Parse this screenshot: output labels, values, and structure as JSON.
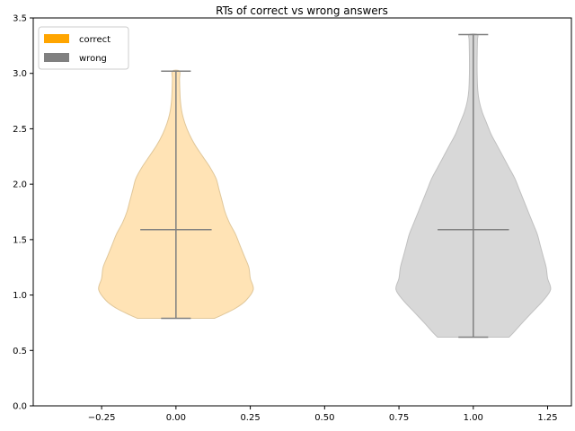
{
  "chart_data": {
    "type": "violin",
    "title": "RTs of correct vs wrong answers",
    "xlabel": "",
    "ylabel": "",
    "xlim": [
      -0.48,
      1.33
    ],
    "ylim": [
      0,
      3.5
    ],
    "xticks": [
      -0.25,
      0.0,
      0.25,
      0.5,
      0.75,
      1.0,
      1.25
    ],
    "xtick_labels": [
      "−0.25",
      "0.00",
      "0.25",
      "0.50",
      "0.75",
      "1.00",
      "1.25"
    ],
    "yticks": [
      0.0,
      0.5,
      1.0,
      1.5,
      2.0,
      2.5,
      3.0,
      3.5
    ],
    "ytick_labels": [
      "0.0",
      "0.5",
      "1.0",
      "1.5",
      "2.0",
      "2.5",
      "3.0",
      "3.5"
    ],
    "legend_position": "top-left",
    "grid": false,
    "series": [
      {
        "name": "correct",
        "legend_color": "#ffa500",
        "fill": "#ffe3b5",
        "stroke": "#e0c79a",
        "position": 0.0,
        "min": 0.79,
        "max": 3.02,
        "median": 1.59,
        "density_profile": [
          [
            0.79,
            0.13
          ],
          [
            0.82,
            0.155
          ],
          [
            0.88,
            0.2
          ],
          [
            0.95,
            0.235
          ],
          [
            1.05,
            0.26
          ],
          [
            1.15,
            0.25
          ],
          [
            1.25,
            0.245
          ],
          [
            1.35,
            0.23
          ],
          [
            1.45,
            0.215
          ],
          [
            1.55,
            0.2
          ],
          [
            1.65,
            0.18
          ],
          [
            1.75,
            0.165
          ],
          [
            1.85,
            0.155
          ],
          [
            1.95,
            0.145
          ],
          [
            2.05,
            0.135
          ],
          [
            2.15,
            0.115
          ],
          [
            2.25,
            0.09
          ],
          [
            2.35,
            0.065
          ],
          [
            2.45,
            0.045
          ],
          [
            2.55,
            0.03
          ],
          [
            2.65,
            0.02
          ],
          [
            2.75,
            0.015
          ],
          [
            2.85,
            0.013
          ],
          [
            2.95,
            0.012
          ],
          [
            3.02,
            0.012
          ]
        ]
      },
      {
        "name": "wrong",
        "legend_color": "#808080",
        "fill": "#d8d8d8",
        "stroke": "#c0c0c0",
        "position": 1.0,
        "min": 0.62,
        "max": 3.35,
        "median": 1.59,
        "density_profile": [
          [
            0.62,
            0.12
          ],
          [
            0.66,
            0.135
          ],
          [
            0.75,
            0.165
          ],
          [
            0.85,
            0.2
          ],
          [
            0.95,
            0.235
          ],
          [
            1.05,
            0.26
          ],
          [
            1.15,
            0.25
          ],
          [
            1.25,
            0.245
          ],
          [
            1.35,
            0.235
          ],
          [
            1.45,
            0.225
          ],
          [
            1.55,
            0.215
          ],
          [
            1.65,
            0.2
          ],
          [
            1.75,
            0.185
          ],
          [
            1.85,
            0.17
          ],
          [
            1.95,
            0.155
          ],
          [
            2.05,
            0.14
          ],
          [
            2.15,
            0.12
          ],
          [
            2.25,
            0.1
          ],
          [
            2.35,
            0.08
          ],
          [
            2.45,
            0.06
          ],
          [
            2.55,
            0.045
          ],
          [
            2.65,
            0.03
          ],
          [
            2.75,
            0.02
          ],
          [
            2.85,
            0.015
          ],
          [
            3.0,
            0.013
          ],
          [
            3.15,
            0.013
          ],
          [
            3.3,
            0.014
          ],
          [
            3.35,
            0.014
          ]
        ]
      }
    ],
    "bar_color": "#808080"
  }
}
